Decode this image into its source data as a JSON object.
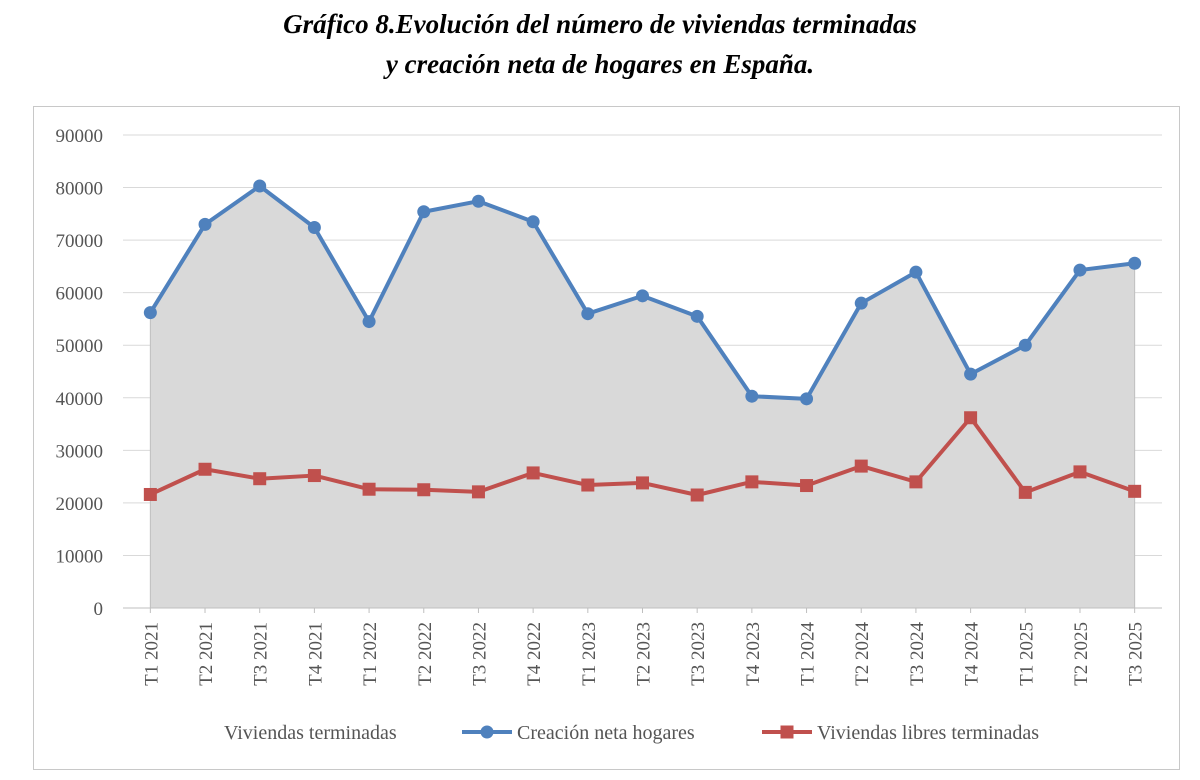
{
  "title": {
    "line1": "Gráfico 8.Evolución del número de viviendas terminadas",
    "line2": "y creación neta de hogares en España."
  },
  "colors": {
    "area": "#d9d9d9",
    "area_edge": "#bfbfbf",
    "creacion": "#4f81bd",
    "libres": "#c0504d",
    "grid": "#d9d9d9",
    "text": "#555555"
  },
  "chart_data": {
    "type": "line",
    "categories": [
      "T1 2021",
      "T2 2021",
      "T3 2021",
      "T4 2021",
      "T1 2022",
      "T2 2022",
      "T3 2022",
      "T4 2022",
      "T1 2023",
      "T2 2023",
      "T3 2023",
      "T4 2023",
      "T1 2024",
      "T2 2024",
      "T3 2024",
      "T4 2024",
      "T1 2025",
      "T2 2025",
      "T3 2025"
    ],
    "ylim": [
      0,
      90000
    ],
    "yticks": [
      0,
      10000,
      20000,
      30000,
      40000,
      50000,
      60000,
      70000,
      80000,
      90000
    ],
    "grid": true,
    "legend_position": "bottom",
    "series": [
      {
        "name": "Viviendas terminadas",
        "type": "area",
        "values": [
          56200,
          73000,
          80300,
          72400,
          54500,
          75400,
          77400,
          73500,
          56000,
          59400,
          55500,
          40300,
          39800,
          58000,
          63900,
          44500,
          50000,
          64300,
          65600
        ]
      },
      {
        "name": "Creación neta hogares",
        "type": "line",
        "marker": "circle",
        "values": [
          56200,
          73000,
          80300,
          72400,
          54500,
          75400,
          77400,
          73500,
          56000,
          59400,
          55500,
          40300,
          39800,
          58000,
          63900,
          44500,
          50000,
          64300,
          65600
        ]
      },
      {
        "name": "Viviendas libres terminadas",
        "type": "line",
        "marker": "square",
        "values": [
          21600,
          26400,
          24600,
          25200,
          22600,
          22500,
          22100,
          25700,
          23400,
          23800,
          21500,
          24000,
          23300,
          27000,
          24000,
          36200,
          22000,
          25900,
          22200
        ]
      }
    ]
  }
}
